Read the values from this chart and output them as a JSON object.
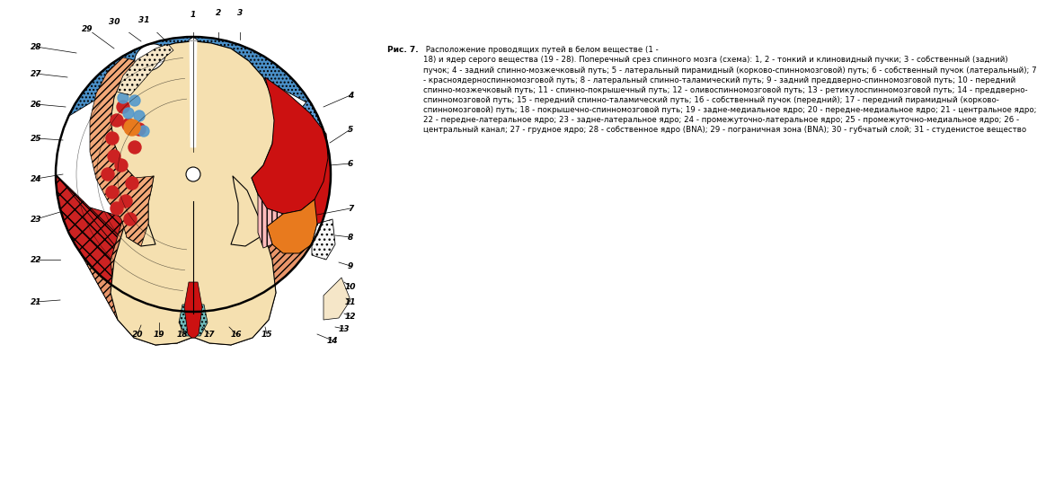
{
  "bg_color": "#ffffff",
  "caption_bold": "Рис. 7.",
  "caption_text": " Расположение проводящих путей в белом веществе (1 -\n18) и ядер серого вещества (19 - 28). Поперечный срез спинного мозга (схема): 1, 2 - тонкий и клиновидный пучки; 3 - собственный (задний)\nпучок; 4 - задний спинно-мозжечковый путь; 5 - латеральный пирамидный (корково-спинномозговой) путь; 6 - собственный пучок (латеральный); 7\n- красноядерноспинномозговой путь; 8 - латеральный спинно-таламический путь; 9 - задний преддверно-спинномозговой путь; 10 - передний\nспинно-мозжечковый путь; 11 - спинно-покрышечный путь; 12 - оливоспинномозговой путь; 13 - ретикулоспинномозговой путь; 14 - преддверно-\nспинномозговой путь; 15 - передний спинно-таламический путь; 16 - собственный пучок (передний); 17 - передний пирамидный (корково-\nспинномозговой) путь; 18 - покрышечно-спинномозговой путь; 19 - задне-медиальное ядро; 20 - передне-медиальное ядро; 21 - центральное ядро;\n22 - передне-латеральное ядро; 23 - задне-латеральное ядро; 24 - промежуточно-латеральное ядро; 25 - промежуточно-медиальное ядро; 26 -\nцентральный канал; 27 - грудное ядро; 28 - собственное ядро (BNA); 29 - пограничная зона (BNA); 30 - губчатый слой; 31 - студенистое вещество",
  "colors": {
    "blue_check": "#5B9BD5",
    "blue_solid": "#4A90C8",
    "red_solid": "#CC1111",
    "orange": "#E87A1E",
    "cream_gm": "#F5E0B0",
    "red_check": "#CC2222",
    "white": "#FFFFFF",
    "teal_check": "#70BBBB",
    "orange_stripe": "#E8956A",
    "white_dot": "#F8F8F8",
    "red_stripe": "#DD5555"
  }
}
